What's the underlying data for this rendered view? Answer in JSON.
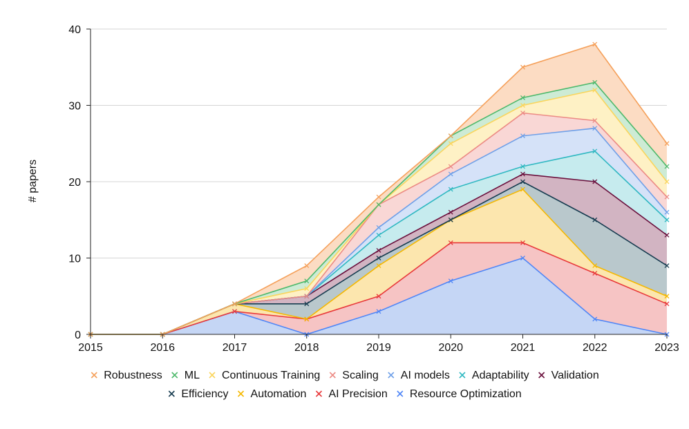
{
  "chart_data": {
    "type": "area",
    "stacked": true,
    "x": [
      2015,
      2016,
      2017,
      2018,
      2019,
      2020,
      2021,
      2022,
      2023
    ],
    "xlabel": "",
    "ylabel": "# papers",
    "ylim": [
      0,
      40
    ],
    "yticks": [
      0,
      10,
      20,
      30,
      40
    ],
    "grid": true,
    "legend_position": "bottom",
    "series": [
      {
        "name": "Resource Optimization",
        "color": "#4F86F7",
        "fill": "#C5D6F5",
        "values": [
          0,
          0,
          3,
          0,
          3,
          7,
          10,
          2,
          0
        ]
      },
      {
        "name": "AI Precision",
        "color": "#E8383A",
        "fill": "#F6C4C4",
        "values": [
          0,
          0,
          0,
          2,
          2,
          5,
          2,
          6,
          4
        ]
      },
      {
        "name": "Automation",
        "color": "#F5B800",
        "fill": "#FCE6AE",
        "values": [
          0,
          0,
          1,
          0,
          4,
          3,
          7,
          1,
          1
        ]
      },
      {
        "name": "Efficiency",
        "color": "#173C50",
        "fill": "#B9C8CC",
        "values": [
          0,
          0,
          0,
          2,
          1,
          0,
          1,
          6,
          4
        ]
      },
      {
        "name": "Validation",
        "color": "#6A0F3C",
        "fill": "#D2B4C2",
        "values": [
          0,
          0,
          0,
          1,
          1,
          1,
          1,
          5,
          4
        ]
      },
      {
        "name": "Adaptability",
        "color": "#2FB8C1",
        "fill": "#C6EBEE",
        "values": [
          0,
          0,
          0,
          0,
          2,
          3,
          1,
          4,
          2
        ]
      },
      {
        "name": "AI models",
        "color": "#6FA0E8",
        "fill": "#D5E2F8",
        "values": [
          0,
          0,
          0,
          0,
          1,
          2,
          4,
          3,
          1
        ]
      },
      {
        "name": "Scaling",
        "color": "#EC8A84",
        "fill": "#F9D7D5",
        "values": [
          0,
          0,
          0,
          0,
          3,
          1,
          3,
          1,
          2
        ]
      },
      {
        "name": "Continuous Training",
        "color": "#FAD55C",
        "fill": "#FEF1C5",
        "values": [
          0,
          0,
          0,
          1,
          0,
          3,
          1,
          4,
          2
        ]
      },
      {
        "name": "ML",
        "color": "#4CB86A",
        "fill": "#CDEBD5",
        "values": [
          0,
          0,
          0,
          1,
          0,
          1,
          1,
          1,
          2
        ]
      },
      {
        "name": "Robustness",
        "color": "#F5A05A",
        "fill": "#FCDCC3",
        "values": [
          0,
          0,
          0,
          2,
          1,
          0,
          4,
          5,
          3
        ]
      }
    ],
    "legend_rows": [
      [
        "Robustness",
        "ML",
        "Continuous Training",
        "Scaling",
        "AI models",
        "Adaptability",
        "Validation"
      ],
      [
        "Efficiency",
        "Automation",
        "AI Precision",
        "Resource Optimization"
      ]
    ]
  }
}
